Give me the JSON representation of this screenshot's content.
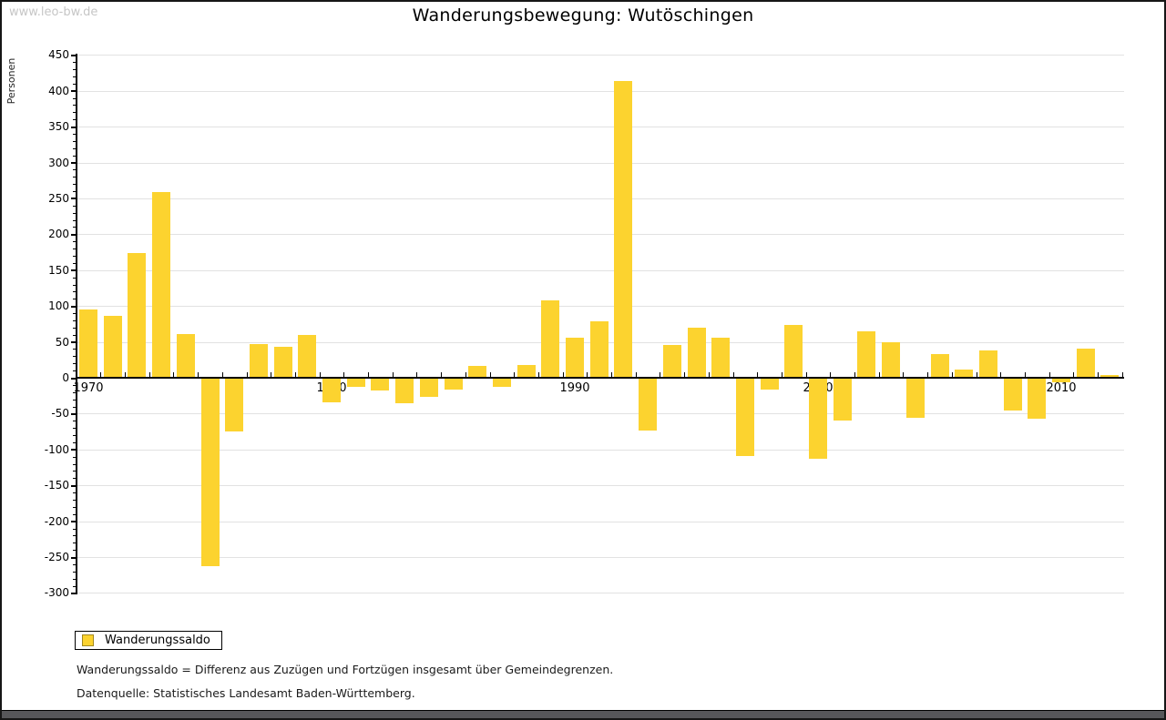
{
  "watermark": "www.leo-bw.de",
  "title": "Wanderungsbewegung: Wutöschingen",
  "y_axis_label": "Personen",
  "legend": {
    "label": "Wanderungssaldo"
  },
  "footnotes": [
    "Wanderungssaldo = Differenz aus Zuzügen und Fortzügen insgesamt über Gemeindegrenzen.",
    "Datenquelle: Statistisches Landesamt Baden-Württemberg."
  ],
  "colors": {
    "bar": "#fcd32f",
    "bar_border": "#a3891f",
    "grid": "#e2e2e2",
    "axis": "#000000",
    "watermark": "#c6c6c6",
    "bottom_strip": "#57575a"
  },
  "chart_data": {
    "type": "bar",
    "title": "Wanderungsbewegung: Wutöschingen",
    "xlabel": "",
    "ylabel": "Personen",
    "series_name": "Wanderungssaldo",
    "years": [
      1970,
      1971,
      1972,
      1973,
      1974,
      1975,
      1976,
      1977,
      1978,
      1979,
      1980,
      1981,
      1982,
      1983,
      1984,
      1985,
      1986,
      1987,
      1988,
      1989,
      1990,
      1991,
      1992,
      1993,
      1994,
      1995,
      1996,
      1997,
      1998,
      1999,
      2000,
      2001,
      2002,
      2003,
      2004,
      2005,
      2006,
      2007,
      2008,
      2009,
      2010,
      2011,
      2012
    ],
    "values": [
      94,
      85,
      173,
      257,
      60,
      -261,
      -73,
      46,
      42,
      58,
      -33,
      -12,
      -16,
      -34,
      -25,
      -15,
      15,
      -12,
      16,
      106,
      54,
      78,
      412,
      -72,
      45,
      69,
      55,
      -108,
      -15,
      72,
      -112,
      -58,
      63,
      48,
      -55,
      32,
      10,
      37,
      -45,
      -56,
      -5,
      39,
      2
    ],
    "ylim": [
      -300,
      450
    ],
    "y_tick_step": 50,
    "y_minor_tick_step": 10,
    "x_tick_labels": [
      "1970",
      "1980",
      "1990",
      "2000",
      "2010"
    ],
    "grid": true,
    "legend_position": "bottom-left"
  }
}
